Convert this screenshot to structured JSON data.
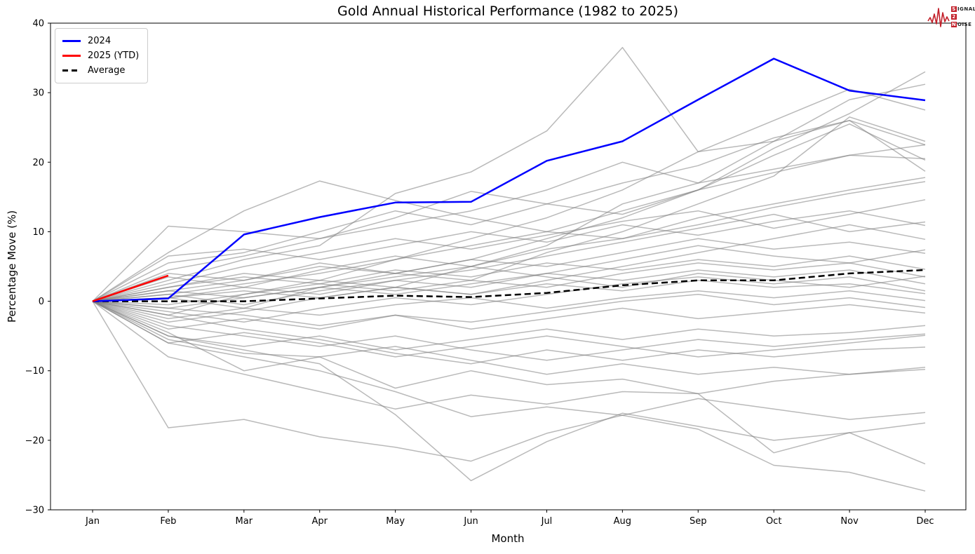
{
  "title": "Gold Annual Historical Performance (1982 to 2025)",
  "logo": {
    "s": "S",
    "ignal": "IGNAL",
    "two": "2",
    "n": "N",
    "oise": "OISE"
  },
  "chart_data": {
    "type": "line",
    "title": "Gold Annual Historical Performance (1982 to 2025)",
    "xlabel": "Month",
    "ylabel": "Percentage Move (%)",
    "x_categories": [
      "Jan",
      "Feb",
      "Mar",
      "Apr",
      "May",
      "Jun",
      "Jul",
      "Aug",
      "Sep",
      "Oct",
      "Nov",
      "Dec"
    ],
    "y_ticks": [
      40,
      30,
      20,
      10,
      0,
      -10,
      -20,
      -30
    ],
    "ylim": [
      -30,
      40
    ],
    "grid": false,
    "legend_position": "upper-left",
    "legend": [
      {
        "label": "2024",
        "color": "#0000ff",
        "style": "solid"
      },
      {
        "label": "2025 (YTD)",
        "color": "#ff0000",
        "style": "solid"
      },
      {
        "label": "Average",
        "color": "#000000",
        "style": "dashed"
      }
    ],
    "series": [
      {
        "name": "2024",
        "color": "#0000ff",
        "width": 2.5,
        "dashed": false,
        "values": [
          0,
          0.4,
          9.6,
          12.1,
          14.2,
          14.3,
          20.2,
          23.0,
          29.0,
          34.9,
          30.3,
          28.9
        ]
      },
      {
        "name": "2025 (YTD)",
        "color": "#ff0000",
        "width": 2.5,
        "dashed": false,
        "values": [
          0,
          3.7
        ]
      },
      {
        "name": "Average",
        "color": "#000000",
        "width": 2.5,
        "dashed": true,
        "values": [
          0,
          0.0,
          0.0,
          0.4,
          0.8,
          0.6,
          1.2,
          2.3,
          3.0,
          3.0,
          4.0,
          4.5
        ]
      }
    ],
    "historical_color": "#808080",
    "historical_opacity": 0.55,
    "historical_series": [
      [
        0,
        1.5,
        3,
        5.5,
        4,
        6,
        9,
        12,
        16,
        22,
        27,
        33
      ],
      [
        0,
        -2,
        1,
        3,
        2,
        5,
        8,
        14,
        17,
        23,
        29,
        31.2
      ],
      [
        0,
        2,
        4,
        3,
        6,
        9,
        12,
        16,
        21.5,
        26,
        30.5,
        27.5
      ],
      [
        0,
        0.5,
        -1,
        2,
        4,
        3,
        7,
        10,
        14,
        18,
        26.5,
        23
      ],
      [
        0,
        4.5,
        6.5,
        9,
        11,
        13,
        16,
        20,
        17,
        19,
        21,
        22.5
      ],
      [
        0,
        10.8,
        10,
        9,
        12,
        15.8,
        14,
        12.5,
        16,
        18.5,
        21,
        20.5
      ],
      [
        0,
        7,
        13,
        17.3,
        14.5,
        12,
        10,
        13,
        16,
        21,
        25.5,
        20.3
      ],
      [
        0,
        3,
        6,
        8,
        15.5,
        18.6,
        24.5,
        36.5,
        21.5,
        23,
        26,
        18.7
      ],
      [
        0,
        1,
        2.5,
        4,
        6,
        8,
        10,
        9,
        12,
        14,
        16,
        17.8
      ],
      [
        0,
        -1,
        0.5,
        2,
        3.5,
        5,
        7.5,
        9,
        11,
        13.5,
        15.5,
        17.2
      ],
      [
        0,
        2.5,
        5,
        7,
        9,
        7.5,
        9.5,
        11.5,
        13,
        10.5,
        12.5,
        14.6
      ],
      [
        0,
        0.5,
        2,
        1,
        3,
        4.5,
        6.5,
        8.5,
        10.5,
        12.5,
        10,
        11.4
      ],
      [
        0,
        6.5,
        7.5,
        6,
        8,
        10,
        8.5,
        11,
        9.5,
        11.5,
        13,
        10.9
      ],
      [
        0,
        -3,
        -1.5,
        0.5,
        2,
        1,
        3,
        5,
        7,
        9,
        11,
        8.9
      ],
      [
        0,
        1,
        -0.5,
        1.5,
        3,
        2,
        4,
        6,
        8,
        6.5,
        5.5,
        7.4
      ],
      [
        0,
        4,
        3,
        5,
        4,
        6,
        5,
        7,
        9,
        7.5,
        8.5,
        6.9
      ],
      [
        0,
        2,
        3.5,
        2.5,
        4.5,
        3.5,
        5.5,
        4.5,
        6,
        5,
        6.5,
        4.6
      ],
      [
        0,
        -0.5,
        1,
        2.5,
        1.5,
        3,
        2,
        4,
        5.5,
        4.5,
        5.5,
        3.5
      ],
      [
        0,
        1.5,
        0.5,
        2,
        1,
        2.5,
        4,
        3,
        4.5,
        3.5,
        4.5,
        2.5
      ],
      [
        0,
        -1.5,
        -3,
        -1,
        0.5,
        -0.5,
        1,
        2.5,
        3.5,
        2.5,
        3.5,
        1.5
      ],
      [
        0,
        0.5,
        1.5,
        0.5,
        2,
        1,
        2.5,
        1.5,
        3,
        2,
        2.5,
        1.1
      ],
      [
        0,
        -2.5,
        -1,
        -2,
        -0.5,
        0.5,
        -1,
        0.5,
        1.5,
        0.5,
        1.5,
        0.1
      ],
      [
        0,
        -4,
        -2.5,
        -4,
        -2,
        -3,
        -1.5,
        0,
        1,
        -0.5,
        0.5,
        -0.9
      ],
      [
        0,
        -1,
        -2,
        -3.5,
        -2,
        -4,
        -2.5,
        -1,
        -2.5,
        -1.5,
        -0.5,
        -1.7
      ],
      [
        0,
        -5,
        -6.5,
        -5,
        -7,
        -5.5,
        -4,
        -5.5,
        -4,
        -5,
        -4.5,
        -3.5
      ],
      [
        0,
        -3.5,
        -5,
        -6.5,
        -5,
        -7,
        -8.5,
        -7,
        -5.5,
        -6.5,
        -5.5,
        -4.7
      ],
      [
        0,
        -6,
        -4.5,
        -6,
        -8,
        -6.5,
        -5,
        -6.5,
        -8,
        -7,
        -6,
        -4.9
      ],
      [
        0,
        -2,
        -4,
        -5.5,
        -7.5,
        -9,
        -7,
        -8.5,
        -7,
        -8,
        -7,
        -6.6
      ],
      [
        0,
        -5.5,
        -7.5,
        -8,
        -6.5,
        -8.5,
        -10.5,
        -9,
        -10.5,
        -9.5,
        -10.5,
        -9.5
      ],
      [
        0,
        -4.5,
        -10,
        -8,
        -12.5,
        -10,
        -12,
        -11.2,
        -13.3,
        -11.5,
        -10.5,
        -9.8
      ],
      [
        0,
        -6,
        -8,
        -10,
        -13,
        -16.6,
        -15.2,
        -16.4,
        -14,
        -15.5,
        -17,
        -16
      ],
      [
        0,
        -5,
        -7,
        -9,
        -16.3,
        -25.8,
        -20.2,
        -16.1,
        -18,
        -20,
        -18.9,
        -17.5
      ],
      [
        0,
        -8,
        -10.5,
        -13,
        -15.5,
        -13.5,
        -14.8,
        -13,
        -13.3,
        -21.8,
        -18.9,
        -23.4
      ],
      [
        0,
        -18.2,
        -17,
        -19.5,
        -21,
        -23,
        -19,
        -16.4,
        -18.4,
        -23.6,
        -24.6,
        -27.3
      ],
      [
        0,
        5.5,
        7,
        10,
        13,
        11,
        14,
        17,
        19.5,
        23.5,
        26,
        22.5
      ],
      [
        0,
        3.5,
        2,
        4.5,
        6.5,
        5,
        3.5,
        2,
        4,
        3,
        2,
        3.6
      ]
    ]
  },
  "colors": {
    "axis": "#000000",
    "background": "#ffffff",
    "legend_border": "#cccccc",
    "logo_red": "#c2202a"
  }
}
